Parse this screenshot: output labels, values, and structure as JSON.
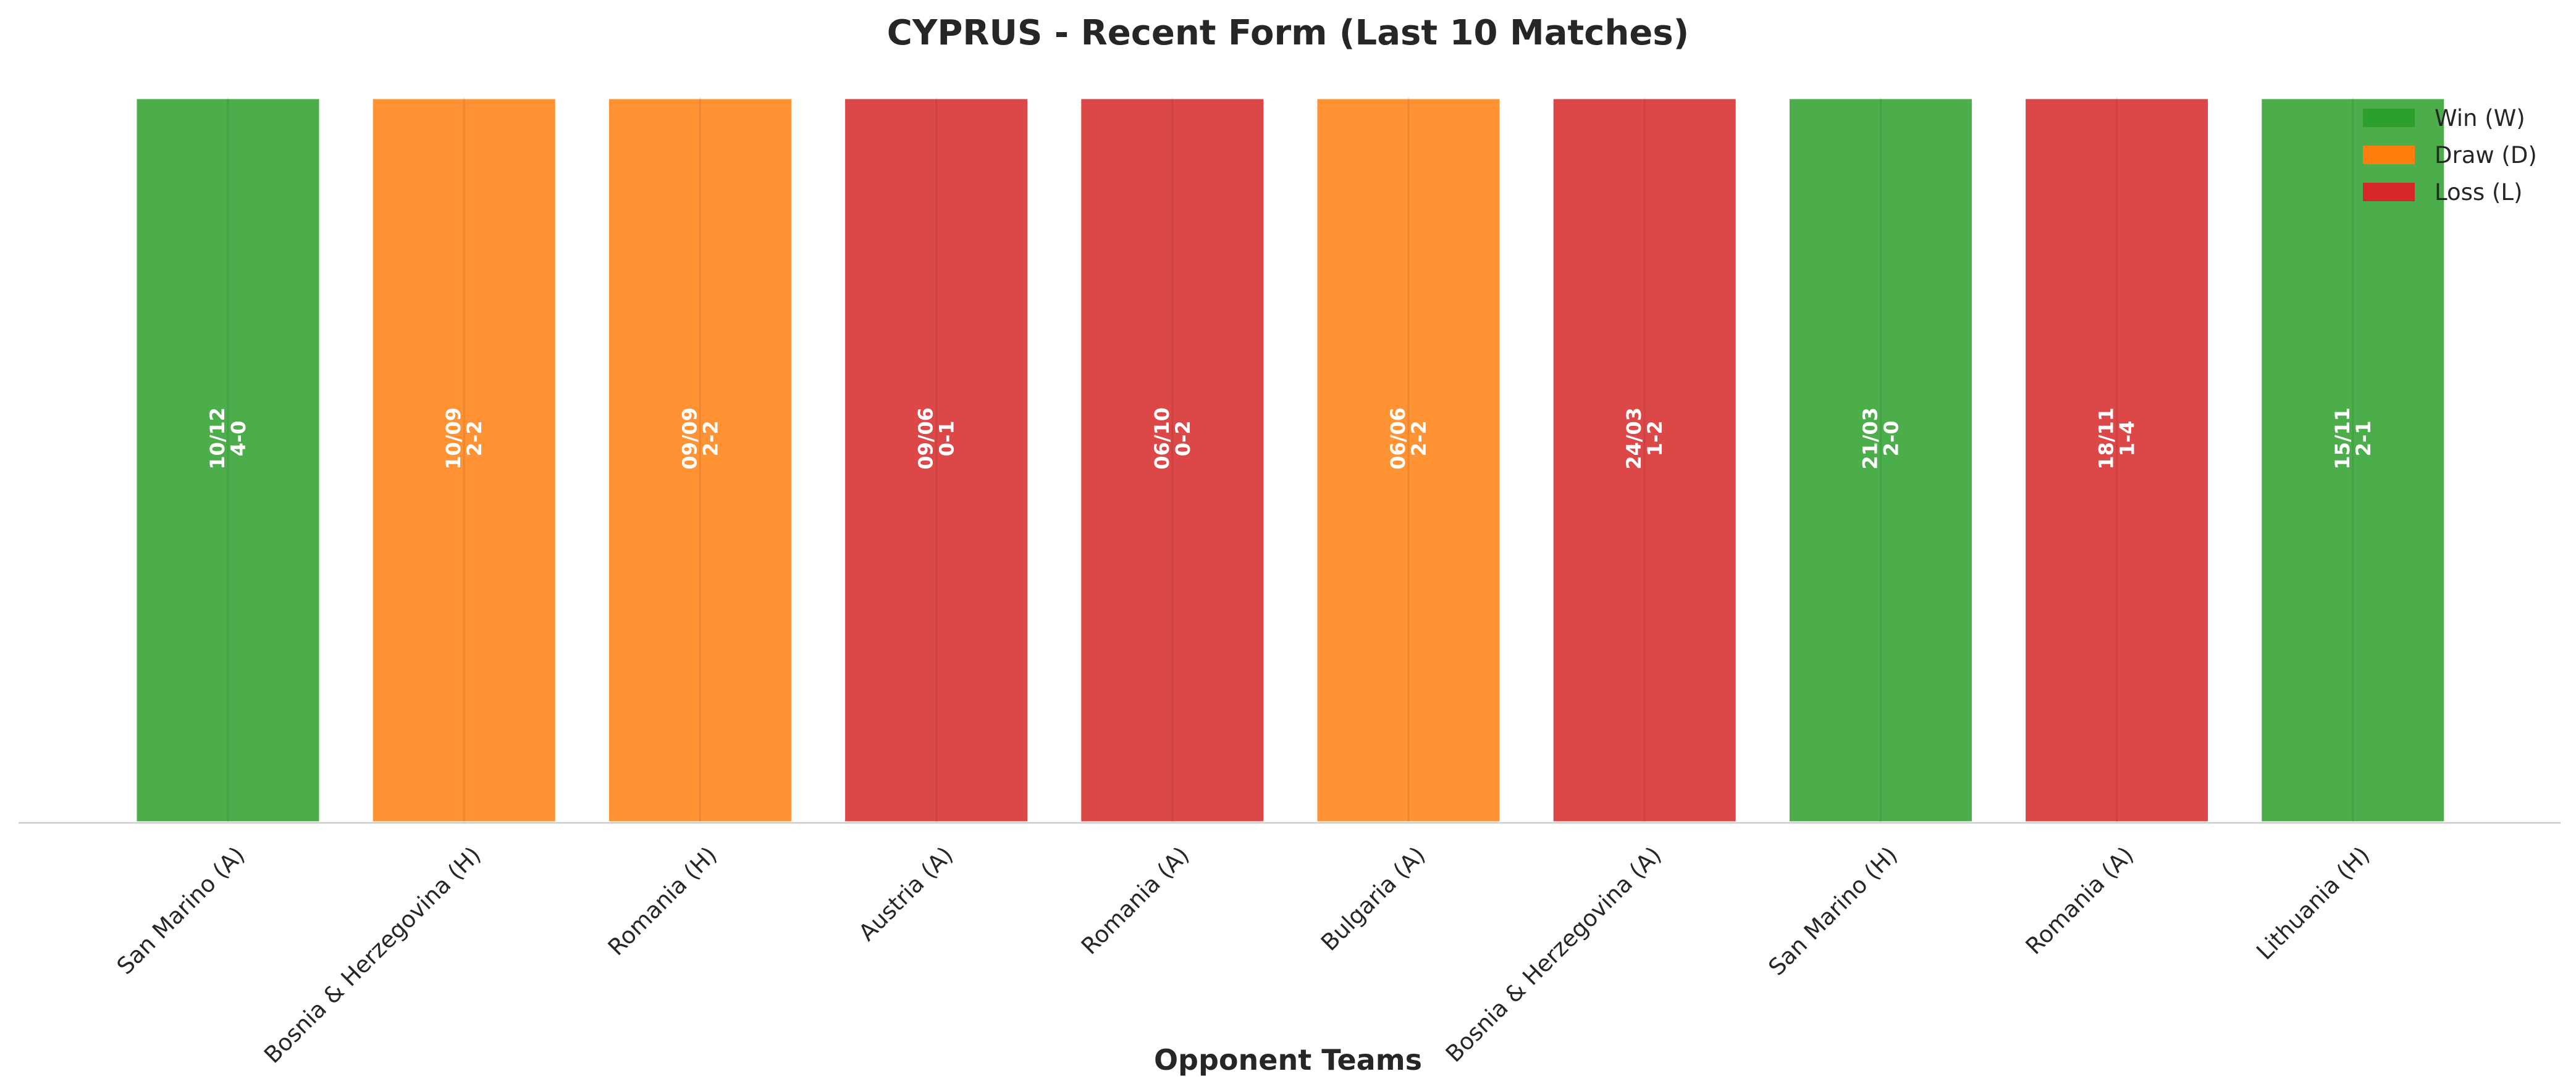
{
  "chart_data": {
    "type": "bar",
    "title": "CYPRUS - Recent Form (Last 10 Matches)",
    "xlabel": "Opponent Teams",
    "ylabel": "",
    "ylim": [
      0,
      1
    ],
    "grid": false,
    "legend_position": "top-right",
    "categories": [
      "San Marino (A)",
      "Bosnia & Herzegovina (H)",
      "Romania (H)",
      "Austria (A)",
      "Romania (A)",
      "Bulgaria (A)",
      "Bosnia & Herzegovina (A)",
      "San Marino (H)",
      "Romania (A)",
      "Lithuania (H)"
    ],
    "values": [
      1,
      1,
      1,
      1,
      1,
      1,
      1,
      1,
      1,
      1
    ],
    "results": [
      "W",
      "D",
      "D",
      "L",
      "L",
      "D",
      "L",
      "W",
      "L",
      "W"
    ],
    "dates": [
      "10/12",
      "10/09",
      "09/09",
      "09/06",
      "06/10",
      "06/06",
      "24/03",
      "21/03",
      "18/11",
      "15/11"
    ],
    "scores": [
      "4-0",
      "2-2",
      "2-2",
      "0-1",
      "0-2",
      "2-2",
      "1-2",
      "2-0",
      "1-4",
      "2-1"
    ],
    "legend": [
      {
        "key": "W",
        "label": "Win (W)",
        "color": "#2ca02c"
      },
      {
        "key": "D",
        "label": "Draw (D)",
        "color": "#ff7f0e"
      },
      {
        "key": "L",
        "label": "Loss (L)",
        "color": "#d62728"
      }
    ]
  }
}
